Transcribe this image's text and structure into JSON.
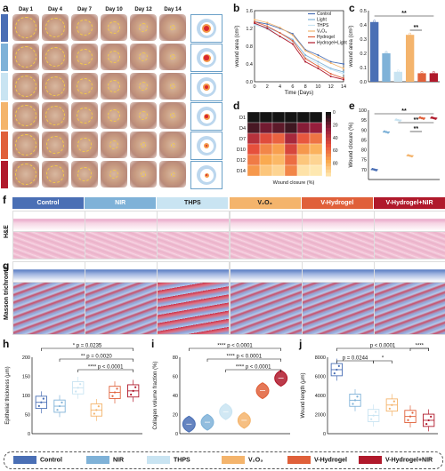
{
  "panels": {
    "a": "a",
    "b": "b",
    "c": "c",
    "d": "d",
    "e": "e",
    "f": "f",
    "g": "g",
    "h": "h",
    "i": "i",
    "j": "j"
  },
  "days": [
    "Day 1",
    "Day 4",
    "Day 7",
    "Day 10",
    "Day 12",
    "Day 14"
  ],
  "groups": [
    {
      "name": "Control",
      "color": "#4a6fb5"
    },
    {
      "name": "NIR",
      "color": "#7fb2d8"
    },
    {
      "name": "THPS",
      "color": "#c9e4f2"
    },
    {
      "name": "V₂O₃",
      "color": "#f4b46c"
    },
    {
      "name": "V-Hydrogel",
      "color": "#e0603a"
    },
    {
      "name": "V-Hydrogel+NIR",
      "color": "#b0192b"
    }
  ],
  "histology_rows": {
    "he": "H&E",
    "mt": "Masson trichrome"
  },
  "chart_data": [
    {
      "id": "b",
      "type": "line",
      "xlabel": "Time (Days)",
      "ylabel": "wound area (cm²)",
      "xlim": [
        0,
        14
      ],
      "ylim": [
        0,
        1.6
      ],
      "x": [
        0,
        2,
        4,
        6,
        8,
        10,
        12,
        14
      ],
      "xticks": [
        0,
        2,
        4,
        6,
        8,
        10,
        12,
        14
      ],
      "yticks": [
        0.0,
        0.4,
        0.8,
        1.2,
        1.6
      ],
      "legend_position": "top-right",
      "series": [
        {
          "name": "Control",
          "color": "#4a6fb5",
          "values": [
            1.35,
            1.3,
            1.2,
            1.08,
            0.72,
            0.6,
            0.45,
            0.4
          ]
        },
        {
          "name": "Light",
          "color": "#7fb2d8",
          "values": [
            1.3,
            1.22,
            1.1,
            0.95,
            0.6,
            0.45,
            0.3,
            0.22
          ]
        },
        {
          "name": "THPS",
          "color": "#c9e4f2",
          "values": [
            1.28,
            1.18,
            1.02,
            0.9,
            0.55,
            0.4,
            0.28,
            0.18
          ]
        },
        {
          "name": "V₂O₃",
          "color": "#f4b46c",
          "values": [
            1.4,
            1.33,
            1.22,
            1.05,
            0.7,
            0.55,
            0.42,
            0.3
          ]
        },
        {
          "name": "Hydrogel",
          "color": "#e0603a",
          "values": [
            1.35,
            1.25,
            1.1,
            0.92,
            0.52,
            0.35,
            0.18,
            0.08
          ]
        },
        {
          "name": "Hydrogel+Light",
          "color": "#b0192b",
          "values": [
            1.32,
            1.2,
            1.02,
            0.85,
            0.45,
            0.3,
            0.12,
            0.05
          ]
        }
      ]
    },
    {
      "id": "c",
      "type": "bar",
      "ylabel": "wound area (cm²)",
      "ylim": [
        0,
        0.5
      ],
      "yticks": [
        0.0,
        0.1,
        0.2,
        0.3,
        0.4,
        0.5
      ],
      "categories": [
        "Control",
        "NIR",
        "THPS",
        "V₂O₃",
        "V-Hydrogel",
        "V-Hydrogel+NIR"
      ],
      "values": [
        0.42,
        0.2,
        0.07,
        0.33,
        0.06,
        0.06
      ],
      "annotations": [
        "**",
        "**"
      ]
    },
    {
      "id": "d",
      "type": "heatmap",
      "rows": [
        "D1",
        "D4",
        "D7",
        "D10",
        "D12",
        "D14"
      ],
      "columns": 6,
      "values": [
        [
          0,
          0,
          0,
          0,
          0,
          0
        ],
        [
          10,
          18,
          14,
          8,
          22,
          25
        ],
        [
          35,
          48,
          55,
          30,
          52,
          60
        ],
        [
          50,
          65,
          72,
          45,
          70,
          78
        ],
        [
          62,
          75,
          80,
          58,
          85,
          90
        ],
        [
          70,
          85,
          90,
          65,
          95,
          97
        ]
      ],
      "colorbar_ticks": [
        0,
        20,
        40,
        60,
        80
      ],
      "colorbar_label": "Wound closure (%)"
    },
    {
      "id": "e",
      "type": "scatter",
      "ylabel": "Wound closure (%)",
      "ylim": [
        65,
        100
      ],
      "yticks": [
        70,
        75,
        80,
        85,
        90,
        95,
        100
      ],
      "categories": [
        "Control",
        "NIR",
        "THPS",
        "V₂O₃",
        "V-Hydrogel",
        "V-Hydrogel+NIR"
      ],
      "values": [
        70,
        89,
        95,
        77,
        96,
        96
      ],
      "annotations": [
        "**",
        "**",
        "**"
      ]
    },
    {
      "id": "h",
      "type": "box",
      "ylabel": "Epithelial thickness (μm)",
      "ylim": [
        0,
        200
      ],
      "yticks": [
        0,
        50,
        100,
        150,
        200
      ],
      "categories": [
        "Control",
        "NIR",
        "THPS",
        "V₂O₃",
        "V-Hydrogel",
        "V-Hydrogel+NIR"
      ],
      "medians": [
        82,
        72,
        120,
        62,
        108,
        112
      ],
      "annotations": [
        "* p = 0.0235",
        "** p = 0.0020",
        "**** p < 0.0001"
      ]
    },
    {
      "id": "i",
      "type": "violin",
      "ylabel": "Collagen volume fraction (%)",
      "ylim": [
        0,
        80
      ],
      "yticks": [
        0,
        20,
        40,
        60,
        80
      ],
      "categories": [
        "Control",
        "NIR",
        "THPS",
        "V₂O₃",
        "V-Hydrogel",
        "V-Hydrogel+NIR"
      ],
      "medians": [
        10,
        12,
        23,
        14,
        45,
        58
      ],
      "annotations": [
        "**** p < 0.0001",
        "**** p < 0.0001",
        "**** p < 0.0001"
      ]
    },
    {
      "id": "j",
      "type": "box",
      "ylabel": "Wound length (μm)",
      "ylim": [
        0,
        8000
      ],
      "yticks": [
        0,
        2000,
        4000,
        6000,
        8000
      ],
      "categories": [
        "Control",
        "NIR",
        "THPS",
        "V₂O₃",
        "V-Hydrogel",
        "V-Hydrogel+NIR"
      ],
      "medians": [
        6700,
        3500,
        1900,
        3000,
        1800,
        1400
      ],
      "annotations": [
        "p < 0.0001",
        "****",
        "p = 0.0244",
        "*"
      ]
    }
  ]
}
